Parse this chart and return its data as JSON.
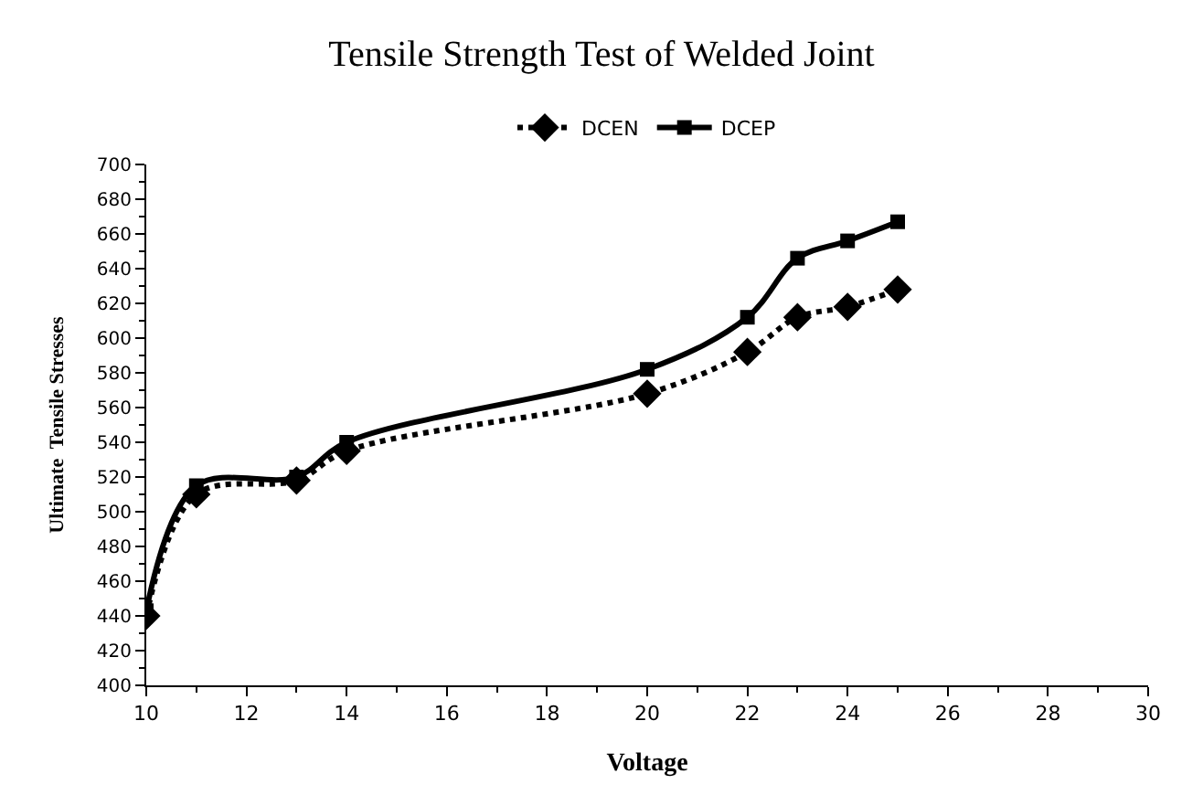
{
  "chart_data": {
    "type": "line",
    "title": "Tensile Strength Test of Welded Joint",
    "xlabel": "Voltage",
    "ylabel": "Ultimate  Tensile Stresses",
    "x": [
      10,
      11,
      13,
      14,
      20,
      22,
      23,
      24,
      25
    ],
    "series": [
      {
        "name": "DCEN",
        "color": "#000000",
        "values": [
          440,
          510,
          518,
          535,
          568,
          592,
          612,
          618,
          628
        ],
        "marker": "diamond",
        "line_style": "dotted"
      },
      {
        "name": "DCEP",
        "color": "#000000",
        "values": [
          443,
          515,
          520,
          540,
          582,
          612,
          646,
          656,
          667
        ],
        "marker": "square",
        "line_style": "solid"
      }
    ],
    "xlim": [
      10,
      30
    ],
    "xticks": [
      10,
      12,
      14,
      16,
      18,
      20,
      22,
      24,
      26,
      28,
      30
    ],
    "ylim": [
      400,
      700
    ],
    "yticks": [
      400,
      420,
      440,
      460,
      480,
      500,
      520,
      540,
      560,
      580,
      600,
      620,
      640,
      660,
      680,
      700
    ],
    "legend": "top"
  }
}
